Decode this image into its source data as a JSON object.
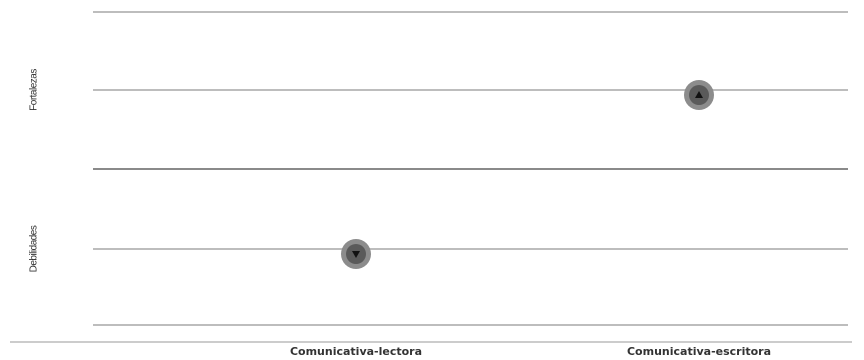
{
  "chart_data": {
    "type": "scatter",
    "categories": [
      "Comunicativa-lectora",
      "Comunicativa-escritora"
    ],
    "y_categories": [
      "Fortalezas",
      "Debilidades"
    ],
    "points": [
      {
        "x": "Comunicativa-lectora",
        "y": "Debilidades",
        "marker": "triangle-down"
      },
      {
        "x": "Comunicativa-escritora",
        "y": "Fortalezas",
        "marker": "triangle-up"
      }
    ],
    "grid": true,
    "colors": {
      "grid": "#bdbdbd",
      "divider": "#8a8a8a",
      "marker_outer": "#8c8c8c",
      "marker_inner": "#5a5a5a",
      "marker_glyph": "#111111"
    }
  }
}
